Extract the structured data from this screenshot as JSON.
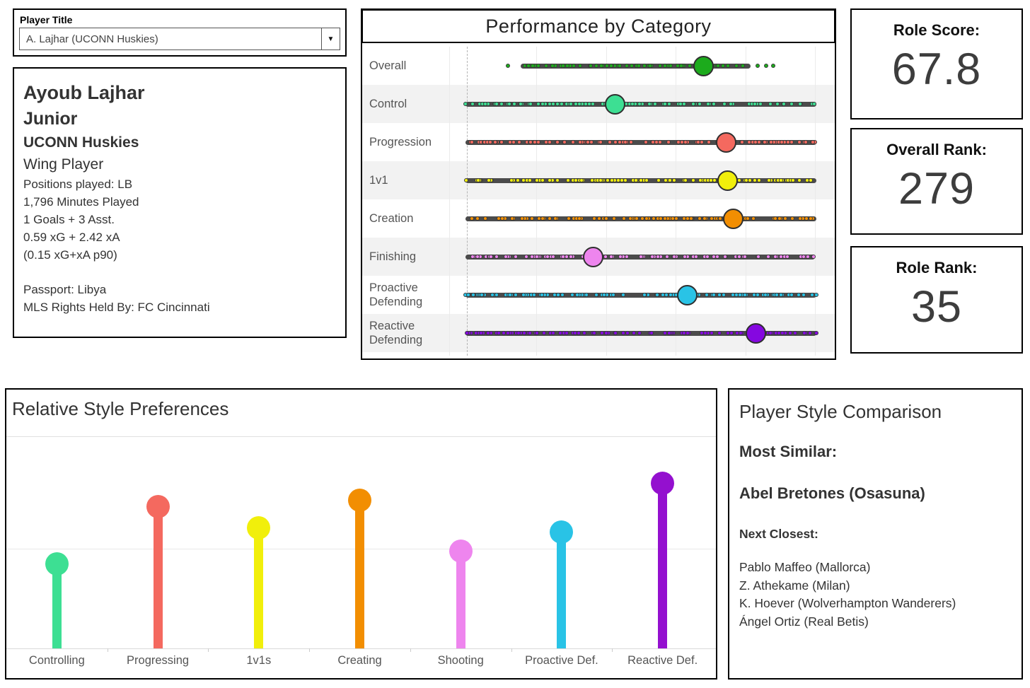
{
  "selector": {
    "label": "Player Title",
    "value": "A. Lajhar (UCONN Huskies)"
  },
  "player_card": {
    "name": "Ayoub Lajhar",
    "class_year": "Junior",
    "team": "UCONN Huskies",
    "role": "Wing Player",
    "details": [
      "Positions played: LB",
      "1,796 Minutes Played",
      "1 Goals + 3 Asst.",
      "0.59 xG + 2.42 xA",
      "(0.15 xG+xA p90)"
    ],
    "passport": "Passport: Libya",
    "mls_rights": "MLS Rights Held By: FC Cincinnati"
  },
  "stat_boxes": [
    {
      "label": "Role Score:",
      "value": "67.8"
    },
    {
      "label": "Overall Rank:",
      "value": "279"
    },
    {
      "label": "Role Rank:",
      "value": "35"
    }
  ],
  "comparison": {
    "title": "Player Style Comparison",
    "most_similar_label": "Most Similar:",
    "most_similar": "Abel Bretones (Osasuna)",
    "next_closest_label": "Next Closest:",
    "next_closest": [
      "Pablo Maffeo (Mallorca)",
      "Z. Athekame (Milan)",
      "K. Hoever (Wolverhampton Wanderers)",
      "Ángel Ortiz (Real Betis)"
    ]
  },
  "chart_data": [
    {
      "id": "performance_by_category",
      "type": "scatter",
      "variant": "strip-distribution (all players as small dots per row; large dot = selected player)",
      "title": "Performance by Category",
      "categories": [
        "Overall",
        "Control",
        "Progression",
        "1v1",
        "Creation",
        "Finishing",
        "Proactive Defending",
        "Reactive Defending"
      ],
      "series": [
        {
          "name": "selected player percentile",
          "values": [
            68,
            42.5,
            74.4,
            74.8,
            76.6,
            36.2,
            63.4,
            83
          ]
        }
      ],
      "x_range": [
        0,
        100
      ],
      "grid": true,
      "reference_line_at": 0,
      "colors": [
        "#1cab1c",
        "#3ddf93",
        "#f4695f",
        "#f1ef0b",
        "#f28e02",
        "#ee85ee",
        "#29c3e6",
        "#8508e0"
      ],
      "strip_lines_pct": [
        [
          15.5,
          81.5
        ],
        [
          -0.5,
          100.5
        ],
        [
          -0.5,
          100.5
        ],
        [
          -0.5,
          100.5
        ],
        [
          -0.5,
          100.5
        ],
        [
          -0.5,
          100.0
        ],
        [
          -0.5,
          100.5
        ],
        [
          -0.5,
          100.5
        ]
      ],
      "outlier_dots_pct": [
        [
          11.8,
          83.5,
          86,
          88
        ],
        [],
        [],
        [],
        [],
        [],
        [],
        []
      ]
    },
    {
      "id": "relative_style_preferences",
      "type": "lollipop",
      "title": "Relative Style Preferences",
      "categories": [
        "Controlling",
        "Progressing",
        "1v1s",
        "Creating",
        "Shooting",
        "Proactive Def.",
        "Reactive Def."
      ],
      "values": [
        0.4,
        0.67,
        0.57,
        0.7,
        0.46,
        0.55,
        0.78
      ],
      "value_note": "relative height 0-1, no y-axis labels shown",
      "reference_gridline": 0.47,
      "colors": [
        "#3ddf93",
        "#f4695f",
        "#f1ef0b",
        "#f28e02",
        "#ee85ee",
        "#29c3e6",
        "#9410cf"
      ],
      "legend": "none"
    }
  ]
}
